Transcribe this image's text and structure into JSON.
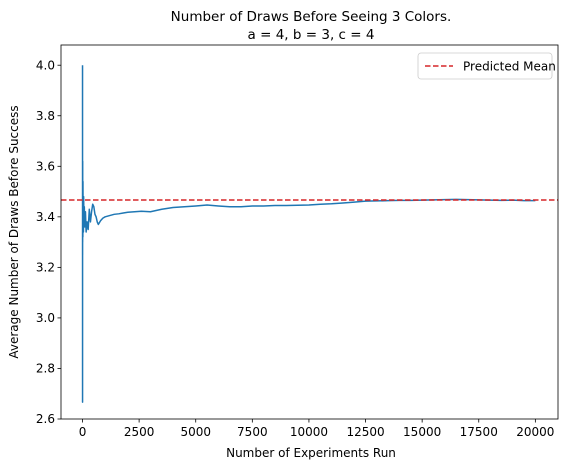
{
  "chart_data": {
    "type": "line",
    "title_line1": "Number of Draws Before Seeing 3 Colors.",
    "title_line2": "a = 4, b = 3, c = 4",
    "xlabel": "Number of Experiments Run",
    "ylabel": "Average Number of Draws Before Success",
    "xlim": [
      -950,
      21000
    ],
    "ylim": [
      2.6,
      4.08
    ],
    "x_ticks": [
      0,
      2500,
      5000,
      7500,
      10000,
      12500,
      15000,
      17500,
      20000
    ],
    "x_tick_labels": [
      "0",
      "2500",
      "5000",
      "7500",
      "10000",
      "12500",
      "15000",
      "17500",
      "20000"
    ],
    "y_ticks": [
      2.6,
      2.8,
      3.0,
      3.2,
      3.4,
      3.6,
      3.8,
      4.0
    ],
    "y_tick_labels": [
      "2.6",
      "2.8",
      "3.0",
      "3.2",
      "3.4",
      "3.6",
      "3.8",
      "4.0"
    ],
    "grid": false,
    "legend_position": "top-right",
    "reference_line": {
      "name": "Predicted Mean",
      "y": 3.4667,
      "color": "#d62728",
      "style": "dashed"
    },
    "series": [
      {
        "color": "#1f77b4",
        "x": [
          1,
          2,
          3,
          4,
          5,
          6,
          8,
          10,
          12,
          15,
          20,
          25,
          30,
          40,
          50,
          60,
          80,
          100,
          130,
          160,
          200,
          250,
          300,
          350,
          400,
          450,
          500,
          550,
          600,
          650,
          700,
          800,
          900,
          1000,
          1200,
          1400,
          1600,
          1800,
          2000,
          2300,
          2600,
          3000,
          3500,
          4000,
          4500,
          5000,
          5500,
          6000,
          6500,
          7000,
          7500,
          8000,
          8500,
          9000,
          9500,
          10000,
          10500,
          11000,
          11500,
          12000,
          12500,
          13000,
          13500,
          14000,
          14500,
          15000,
          15500,
          16000,
          16500,
          17000,
          17500,
          18000,
          18500,
          19000,
          19500,
          20000
        ],
        "y": [
          4.0,
          2.667,
          3.6,
          3.25,
          3.52,
          3.3,
          3.62,
          3.34,
          3.5,
          3.32,
          3.54,
          3.4,
          3.44,
          3.34,
          3.48,
          3.4,
          3.44,
          3.36,
          3.42,
          3.34,
          3.38,
          3.35,
          3.43,
          3.38,
          3.42,
          3.45,
          3.44,
          3.41,
          3.4,
          3.38,
          3.37,
          3.385,
          3.395,
          3.4,
          3.405,
          3.41,
          3.412,
          3.415,
          3.418,
          3.42,
          3.422,
          3.42,
          3.43,
          3.437,
          3.44,
          3.443,
          3.447,
          3.443,
          3.44,
          3.44,
          3.443,
          3.443,
          3.445,
          3.445,
          3.446,
          3.447,
          3.45,
          3.452,
          3.455,
          3.458,
          3.462,
          3.463,
          3.464,
          3.465,
          3.465,
          3.466,
          3.467,
          3.468,
          3.469,
          3.468,
          3.467,
          3.466,
          3.465,
          3.466,
          3.464,
          3.464
        ]
      }
    ]
  }
}
